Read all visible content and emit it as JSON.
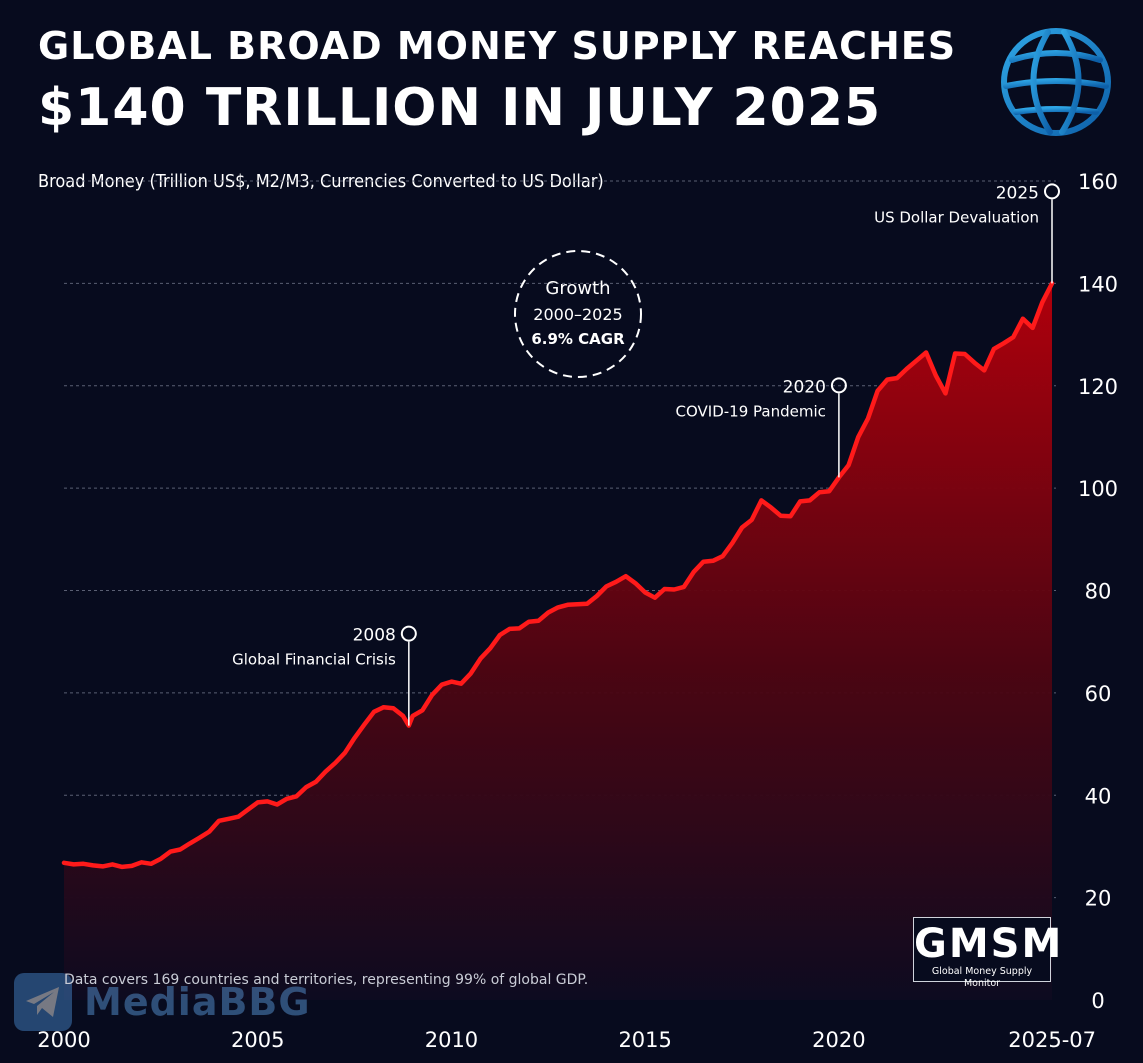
{
  "header": {
    "title_line1": "GLOBAL BROAD MONEY SUPPLY REACHES",
    "title_line2": "$140 TRILLION IN JULY 2025"
  },
  "chart_data": {
    "type": "area",
    "title": "GLOBAL BROAD MONEY SUPPLY REACHES $140 TRILLION IN JULY 2025",
    "ylabel": "Broad Money (Trillion US$, M2/M3, Currencies Converted to US Dollar)",
    "ylim": [
      0,
      160
    ],
    "yticks": [
      0,
      20,
      40,
      60,
      80,
      100,
      120,
      140,
      160
    ],
    "xlim": [
      2000,
      2025.5
    ],
    "xticks": [
      {
        "value": 2000,
        "label": "2000"
      },
      {
        "value": 2005,
        "label": "2005"
      },
      {
        "value": 2010,
        "label": "2010"
      },
      {
        "value": 2015,
        "label": "2015"
      },
      {
        "value": 2020,
        "label": "2020"
      },
      {
        "value": 2025.5,
        "label": "2025-07"
      }
    ],
    "grid": true,
    "series": [
      {
        "name": "Broad Money",
        "color": "#ff1a1a",
        "x": [
          2000.0,
          2000.25,
          2000.5,
          2000.75,
          2001.0,
          2001.25,
          2001.5,
          2001.75,
          2002.0,
          2002.25,
          2002.5,
          2002.75,
          2003.0,
          2003.25,
          2003.5,
          2003.75,
          2004.0,
          2004.25,
          2004.5,
          2004.75,
          2005.0,
          2005.25,
          2005.5,
          2005.75,
          2006.0,
          2006.25,
          2006.5,
          2006.75,
          2007.0,
          2007.25,
          2007.5,
          2007.75,
          2008.0,
          2008.25,
          2008.5,
          2008.75,
          2008.9,
          2009.0,
          2009.25,
          2009.5,
          2009.75,
          2010.0,
          2010.25,
          2010.5,
          2010.75,
          2011.0,
          2011.25,
          2011.5,
          2011.75,
          2012.0,
          2012.25,
          2012.5,
          2012.75,
          2013.0,
          2013.25,
          2013.5,
          2013.75,
          2014.0,
          2014.25,
          2014.5,
          2014.75,
          2015.0,
          2015.25,
          2015.5,
          2015.75,
          2016.0,
          2016.25,
          2016.5,
          2016.75,
          2017.0,
          2017.25,
          2017.5,
          2017.75,
          2018.0,
          2018.25,
          2018.5,
          2018.75,
          2019.0,
          2019.25,
          2019.5,
          2019.75,
          2020.0,
          2020.25,
          2020.5,
          2020.75,
          2021.0,
          2021.25,
          2021.5,
          2021.75,
          2022.0,
          2022.25,
          2022.5,
          2022.75,
          2023.0,
          2023.25,
          2023.5,
          2023.75,
          2024.0,
          2024.25,
          2024.5,
          2024.75,
          2025.0,
          2025.25,
          2025.5
        ],
        "values": [
          26.8,
          26.5,
          26.6,
          26.3,
          26.1,
          26.5,
          26.0,
          26.2,
          26.9,
          26.6,
          27.6,
          29.0,
          29.4,
          30.6,
          31.7,
          32.9,
          35.0,
          35.4,
          35.8,
          37.2,
          38.6,
          38.8,
          38.2,
          39.3,
          39.8,
          41.6,
          42.6,
          44.6,
          46.3,
          48.3,
          51.2,
          53.8,
          56.3,
          57.2,
          57.0,
          55.5,
          53.6,
          55.5,
          56.6,
          59.6,
          61.6,
          62.2,
          61.8,
          63.8,
          66.7,
          68.7,
          71.3,
          72.5,
          72.6,
          73.9,
          74.1,
          75.7,
          76.7,
          77.2,
          77.3,
          77.4,
          78.9,
          80.8,
          81.7,
          82.8,
          81.4,
          79.6,
          78.6,
          80.3,
          80.2,
          80.7,
          83.6,
          85.6,
          85.8,
          86.7,
          89.3,
          92.3,
          93.8,
          97.6,
          96.2,
          94.6,
          94.5,
          97.4,
          97.6,
          99.2,
          99.4,
          102.1,
          104.5,
          110.0,
          113.6,
          119.0,
          121.2,
          121.5,
          123.3,
          124.9,
          126.5,
          122.0,
          118.5,
          126.3,
          126.2,
          124.5,
          123.0,
          127.2,
          128.3,
          129.5,
          133.1,
          131.3,
          136.3,
          140.0
        ]
      }
    ],
    "annotations": [
      {
        "year_label": "2008",
        "text": "Global Financial Crisis",
        "x": 2008.9,
        "y": 53.6
      },
      {
        "year_label": "2020",
        "text": "COVID-19 Pandemic",
        "x": 2020.0,
        "y": 102.1
      },
      {
        "year_label": "2025",
        "text": "US Dollar Devaluation",
        "x": 2025.5,
        "y": 140.0
      }
    ],
    "growth_badge": {
      "line1": "Growth",
      "line2": "2000–2025",
      "line3": "6.9% CAGR"
    }
  },
  "branding": {
    "logo_icon": "globe-icon",
    "gmsm_mark": "GMSM",
    "gmsm_subtitle": "Global Money Supply Monitor",
    "watermark_icon": "telegram-icon",
    "watermark_text": "MediaBBG"
  },
  "footnote": "Data covers 169 countries and territories, representing 99% of global GDP."
}
